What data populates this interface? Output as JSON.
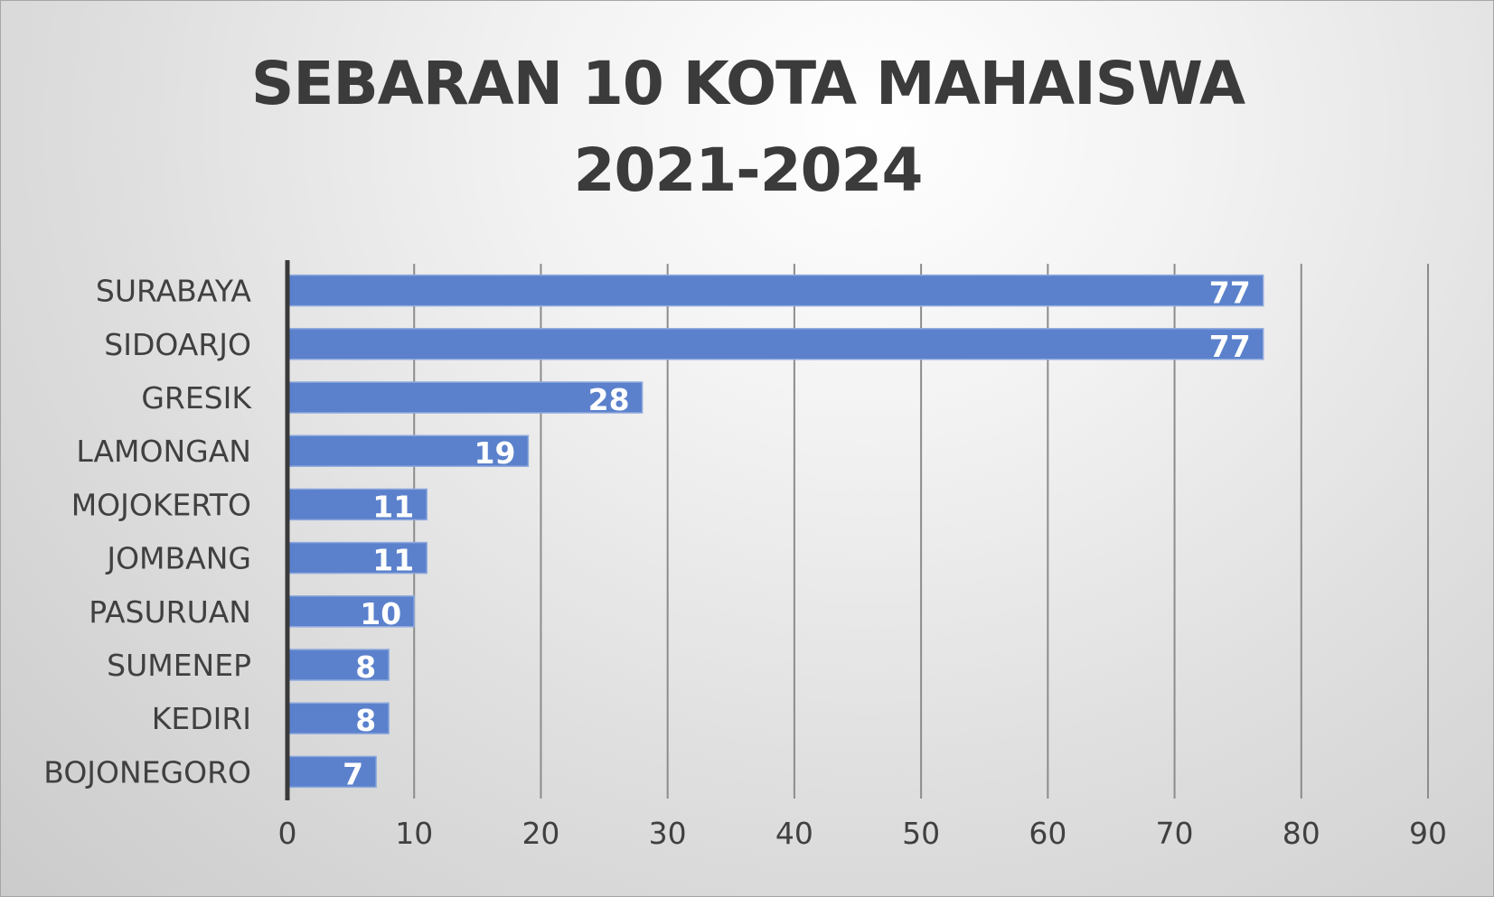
{
  "chart_data": {
    "type": "bar",
    "orientation": "horizontal",
    "title": "SEBARAN 10 KOTA MAHAISWA 2021-2024",
    "title_lines": [
      "SEBARAN 10 KOTA MAHAISWA",
      "2021-2024"
    ],
    "categories": [
      "SURABAYA",
      "SIDOARJO",
      "GRESIK",
      "LAMONGAN",
      "MOJOKERTO",
      "JOMBANG",
      "PASURUAN",
      "SUMENEP",
      "KEDIRI",
      "BOJONEGORO"
    ],
    "values": [
      77,
      77,
      28,
      19,
      11,
      11,
      10,
      8,
      8,
      7
    ],
    "xlim": [
      0,
      90
    ],
    "xticks": [
      0,
      10,
      20,
      30,
      40,
      50,
      60,
      70,
      80,
      90
    ],
    "xlabel": "",
    "ylabel": "",
    "grid": true,
    "legend": "none",
    "data_labels": true,
    "colors": {
      "bar": "#5b81cc",
      "bar_edge": "#8fa9dd",
      "grid": "#8c8c8c",
      "axis": "#3a3a3a",
      "text": "#404040",
      "title": "#3b3b3b",
      "data_label": "#ffffff"
    }
  }
}
